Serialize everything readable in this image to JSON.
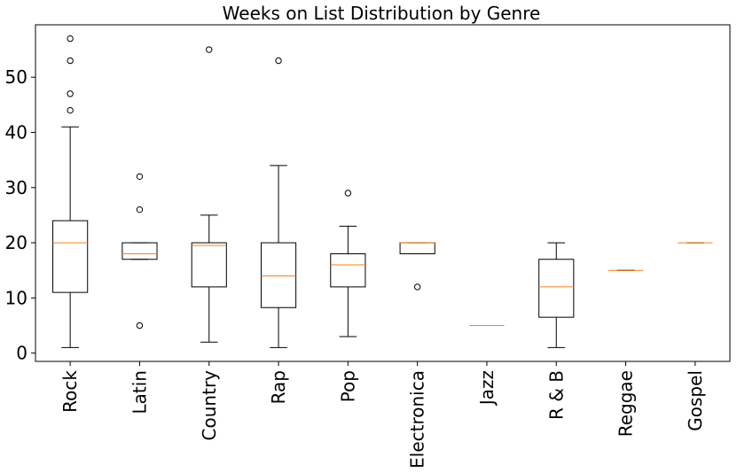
{
  "chart_data": {
    "type": "boxplot",
    "title": "Weeks on List Distribution by Genre",
    "xlabel": "",
    "ylabel": "",
    "ylim": [
      -1.5,
      59.5
    ],
    "yticks": [
      0,
      10,
      20,
      30,
      40,
      50
    ],
    "grid": false,
    "categories": [
      "Rock",
      "Latin",
      "Country",
      "Rap",
      "Pop",
      "Electronica",
      "Jazz",
      "R & B",
      "Reggae",
      "Gospel"
    ],
    "boxes": [
      {
        "whisker_low": 1,
        "q1": 11,
        "median": 20,
        "q3": 24,
        "whisker_high": 41,
        "outliers": [
          44,
          47,
          53,
          57
        ]
      },
      {
        "whisker_low": 17,
        "q1": 17,
        "median": 18,
        "q3": 20,
        "whisker_high": 20,
        "outliers": [
          5,
          26,
          32
        ]
      },
      {
        "whisker_low": 2,
        "q1": 12,
        "median": 19.5,
        "q3": 20,
        "whisker_high": 25,
        "outliers": [
          55
        ]
      },
      {
        "whisker_low": 1,
        "q1": 8.25,
        "median": 14,
        "q3": 20,
        "whisker_high": 34,
        "outliers": [
          53
        ]
      },
      {
        "whisker_low": 3,
        "q1": 12,
        "median": 16,
        "q3": 18,
        "whisker_high": 23,
        "outliers": [
          29
        ]
      },
      {
        "whisker_low": 18,
        "q1": 18,
        "median": 20,
        "q3": 20,
        "whisker_high": 20,
        "outliers": [
          12
        ]
      },
      {
        "whisker_low": 5,
        "q1": 5,
        "median": 5,
        "q3": 5,
        "whisker_high": 5,
        "outliers": []
      },
      {
        "whisker_low": 1,
        "q1": 6.5,
        "median": 12,
        "q3": 17,
        "whisker_high": 20,
        "outliers": []
      },
      {
        "whisker_low": 15,
        "q1": 15,
        "median": 15,
        "q3": 15,
        "whisker_high": 15,
        "outliers": []
      },
      {
        "whisker_low": 20,
        "q1": 20,
        "median": 20,
        "q3": 20,
        "whisker_high": 20,
        "outliers": []
      }
    ],
    "colors": {
      "box": "#000000",
      "median": "#ff7f0e",
      "outlier": "#000000",
      "background": "#ffffff"
    }
  }
}
